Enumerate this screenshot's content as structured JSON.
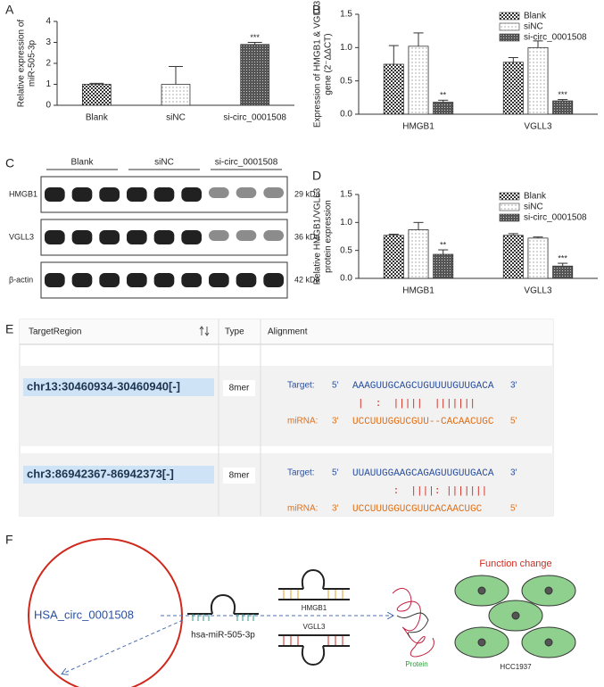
{
  "panels": [
    "A",
    "B",
    "C",
    "D",
    "E",
    "F"
  ],
  "chart_data": [
    {
      "type": "bar",
      "ylabel": [
        "Relative expression of",
        "miR-505-3p"
      ],
      "categories": [
        "Blank",
        "siNC",
        "si-circ_0001508"
      ],
      "values": [
        1.0,
        1.0,
        2.9
      ],
      "errors": [
        0.05,
        0.85,
        0.1
      ],
      "patterns": [
        "checker",
        "dots",
        "dense"
      ],
      "annotations": [
        null,
        null,
        "***"
      ],
      "ylim": [
        0,
        4
      ],
      "yticks": [
        0,
        1,
        2,
        3,
        4
      ]
    },
    {
      "type": "bar",
      "ylabel": [
        "Expression of HMGB1 & VGLL3",
        "gene (2⁻ΔΔCT)"
      ],
      "categories": [
        "HMGB1",
        "VGLL3"
      ],
      "series": [
        {
          "name": "Blank",
          "pattern": "checker",
          "values": [
            0.75,
            0.78
          ],
          "errors": [
            0.28,
            0.07
          ]
        },
        {
          "name": "siNC",
          "pattern": "dots",
          "values": [
            1.02,
            1.0
          ],
          "errors": [
            0.2,
            0.1
          ]
        },
        {
          "name": "si-circ_0001508",
          "pattern": "dense",
          "values": [
            0.18,
            0.2
          ],
          "errors": [
            0.03,
            0.02
          ],
          "annotations": [
            "**",
            "***"
          ]
        }
      ],
      "ylim": [
        0,
        1.5
      ],
      "yticks": [
        {
          "value": 0,
          "label": "0.0"
        },
        0.5,
        {
          "value": 1,
          "label": "1.0"
        },
        1.5
      ],
      "legend": "upper right"
    },
    {
      "type": "bar",
      "ylabel": [
        "Relative HMGB1/VGLL3",
        "protein expression"
      ],
      "categories": [
        "HMGB1",
        "VGLL3"
      ],
      "series": [
        {
          "name": "Blank",
          "pattern": "checker",
          "values": [
            0.77,
            0.77
          ],
          "errors": [
            0.02,
            0.03
          ]
        },
        {
          "name": "siNC",
          "pattern": "dots",
          "values": [
            0.87,
            0.72
          ],
          "errors": [
            0.13,
            0.02
          ]
        },
        {
          "name": "si-circ_0001508",
          "pattern": "dense",
          "values": [
            0.43,
            0.22
          ],
          "errors": [
            0.08,
            0.05
          ],
          "annotations": [
            "**",
            "***"
          ]
        }
      ],
      "ylim": [
        0,
        1.5
      ],
      "yticks": [
        {
          "value": 0,
          "label": "0.0"
        },
        0.5,
        {
          "value": 1,
          "label": "1.0"
        },
        1.5
      ],
      "legend": "upper right"
    }
  ],
  "blot": {
    "group_labels": [
      "Blank",
      "siNC",
      "si-circ_0001508"
    ],
    "rows": [
      {
        "label": "HMGB1",
        "size": "29 kDa"
      },
      {
        "label": "VGLL3",
        "size": "36 kDa"
      },
      {
        "label": "β-actin",
        "size": "42 kDa"
      }
    ]
  },
  "table": {
    "headers": [
      "TargetRegion",
      "Type",
      "Alignment"
    ],
    "rows": [
      {
        "region": "chr13:30460934-30460940[-]",
        "type": "8mer",
        "target_label": "Target:",
        "target_5": "5′",
        "target": "AAAGUUGCAGCUGUUUUGUUGACA",
        "target_3": "3′",
        "pairs": "|  :  |||||  |||||||",
        "mirna_label": "miRNA:",
        "mirna_3": "3′",
        "mirna": "UCCUUUGGUCGUU--CACAACUGC",
        "mirna_5": "5′"
      },
      {
        "region": "chr3:86942367-86942373[-]",
        "type": "8mer",
        "target_label": "Target:",
        "target_5": "5′",
        "target": "UUAUUGGAAGCAGAGUUGUUGACA",
        "target_3": "3′",
        "pairs": "      :  ||||: |||||||",
        "mirna_label": "miRNA:",
        "mirna_3": "3′",
        "mirna": "UCCUUUGGUCGUUCACAACUGC",
        "mirna_5": "5′"
      }
    ]
  },
  "diagram": {
    "circle_label": "HSA_circ_0001508",
    "mirna": "hsa-miR-505-3p",
    "targets": [
      "HMGB1",
      "VGLL3"
    ],
    "protein": "Protein",
    "function": "Function change",
    "cell": "HCC1937"
  }
}
